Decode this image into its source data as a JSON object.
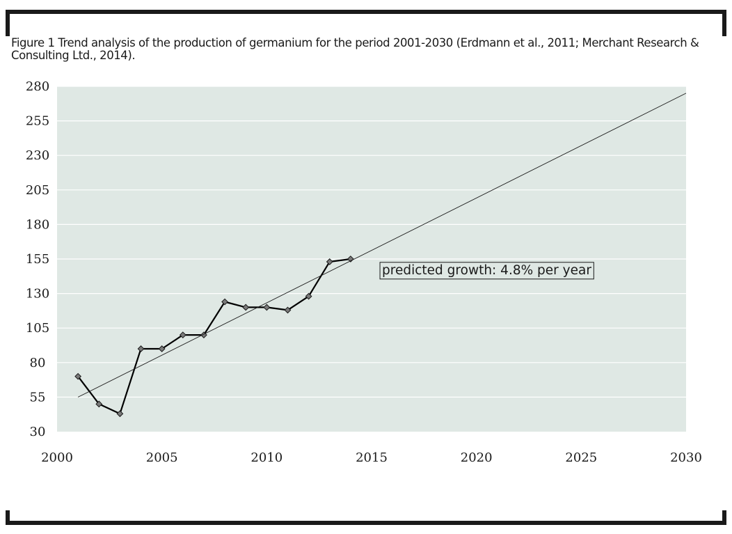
{
  "caption": "Figure 1 Trend analysis of the production of germanium for the period 2001-2030 (Erdmann et al., 2011; Merchant Research & Consulting Ltd., 2014).",
  "chart_data": {
    "type": "line",
    "title": "",
    "xlabel": "",
    "ylabel": "",
    "xlim": [
      2000,
      2030
    ],
    "ylim": [
      30,
      280
    ],
    "x_ticks": [
      2000,
      2005,
      2010,
      2015,
      2020,
      2025,
      2030
    ],
    "y_ticks": [
      280,
      255,
      230,
      205,
      180,
      155,
      130,
      105,
      80,
      55,
      30
    ],
    "grid": "horizontal",
    "plot_background": "#dfe8e4",
    "series": [
      {
        "kind": "observed",
        "marker": "diamond",
        "color": "#000000",
        "x": [
          2001,
          2002,
          2003,
          2004,
          2005,
          2006,
          2007,
          2008,
          2009,
          2010,
          2011,
          2012,
          2013,
          2014
        ],
        "y": [
          70,
          50,
          43,
          90,
          90,
          100,
          100,
          124,
          120,
          120,
          118,
          128,
          153,
          155
        ]
      },
      {
        "kind": "trend",
        "color": "#1a1a1a",
        "x": [
          2001,
          2030
        ],
        "y": [
          55,
          275
        ]
      }
    ],
    "annotations": [
      {
        "text": "predicted growth: 4.8% per year",
        "x": 2015.4,
        "y": 141
      }
    ]
  }
}
